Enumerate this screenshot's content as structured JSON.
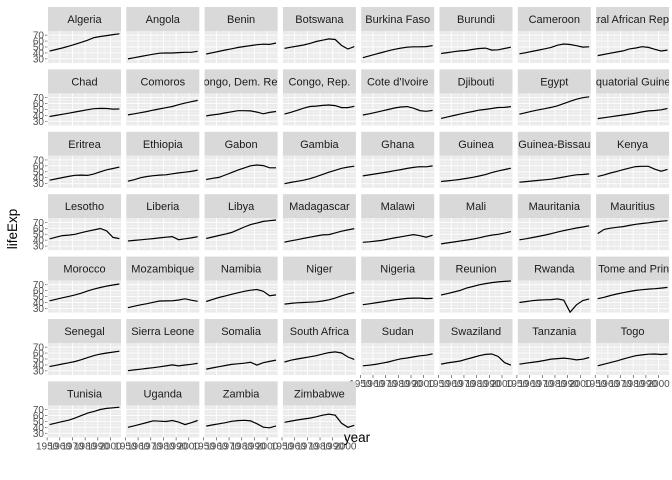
{
  "chart_data": {
    "type": "line",
    "facet": "country",
    "xlabel": "year",
    "ylabel": "lifeExp",
    "xlim": [
      1952,
      2007
    ],
    "ylim": [
      23,
      77
    ],
    "x": [
      1952,
      1957,
      1962,
      1967,
      1972,
      1977,
      1982,
      1987,
      1992,
      1997,
      2002,
      2007
    ],
    "x_ticks": [
      1950,
      1960,
      1970,
      1980,
      1990,
      2000
    ],
    "x_tick_labels": [
      "1950",
      "1960",
      "1970",
      "1980",
      "1990",
      "2000"
    ],
    "y_ticks": [
      30,
      40,
      50,
      60,
      70
    ],
    "y_tick_labels": [
      "30",
      "40",
      "50",
      "60",
      "70"
    ],
    "grid": true,
    "panel_background": "#ebebeb",
    "strip_background": "#d9d9d9",
    "line_color": "#000000",
    "series": [
      {
        "name": "Algeria",
        "values": [
          43.1,
          45.7,
          48.3,
          51.4,
          54.5,
          58.0,
          61.4,
          65.8,
          67.7,
          69.2,
          71.0,
          72.3
        ]
      },
      {
        "name": "Angola",
        "values": [
          30.0,
          32.0,
          34.0,
          36.0,
          37.9,
          39.5,
          39.9,
          39.9,
          40.6,
          41.0,
          41.0,
          42.7
        ]
      },
      {
        "name": "Benin",
        "values": [
          38.2,
          40.4,
          42.6,
          44.9,
          47.0,
          49.2,
          50.9,
          52.3,
          53.9,
          54.8,
          54.4,
          56.7
        ]
      },
      {
        "name": "Botswana",
        "values": [
          47.6,
          49.6,
          51.5,
          53.3,
          56.0,
          59.3,
          61.5,
          63.6,
          62.7,
          52.6,
          46.6,
          50.7
        ]
      },
      {
        "name": "Burkina Faso",
        "values": [
          32.0,
          34.9,
          37.8,
          40.7,
          43.6,
          46.1,
          48.1,
          49.6,
          50.3,
          50.3,
          50.7,
          52.3
        ]
      },
      {
        "name": "Burundi",
        "values": [
          39.0,
          40.5,
          42.0,
          43.5,
          44.1,
          45.9,
          47.5,
          48.2,
          44.7,
          45.3,
          47.4,
          49.6
        ]
      },
      {
        "name": "Cameroon",
        "values": [
          38.5,
          40.4,
          42.6,
          44.8,
          47.0,
          49.4,
          53.0,
          55.0,
          54.3,
          52.2,
          49.9,
          50.4
        ]
      },
      {
        "name": "Central African Republic",
        "values": [
          35.5,
          37.5,
          39.5,
          41.5,
          43.5,
          46.8,
          48.3,
          50.5,
          49.4,
          46.1,
          43.3,
          44.7
        ]
      },
      {
        "name": "Chad",
        "values": [
          38.1,
          39.9,
          41.7,
          43.6,
          45.6,
          47.4,
          49.5,
          51.1,
          51.7,
          51.6,
          50.5,
          50.7
        ]
      },
      {
        "name": "Comoros",
        "values": [
          40.7,
          42.5,
          44.5,
          46.5,
          48.9,
          50.9,
          52.9,
          54.9,
          57.9,
          60.7,
          62.97,
          65.2
        ]
      },
      {
        "name": "Congo, Dem. Rep.",
        "values": [
          39.1,
          40.7,
          42.1,
          44.1,
          45.9,
          47.8,
          47.8,
          47.4,
          45.5,
          42.6,
          45.0,
          46.5
        ]
      },
      {
        "name": "Congo, Rep.",
        "values": [
          42.1,
          45.1,
          48.4,
          52.0,
          54.9,
          55.6,
          56.7,
          57.5,
          56.4,
          52.96,
          52.97,
          55.3
        ]
      },
      {
        "name": "Cote d'Ivoire",
        "values": [
          40.5,
          42.5,
          44.9,
          47.4,
          49.8,
          52.4,
          53.98,
          54.7,
          52.0,
          47.99,
          46.8,
          48.3
        ]
      },
      {
        "name": "Djibouti",
        "values": [
          34.8,
          37.3,
          39.7,
          42.1,
          44.4,
          46.5,
          48.8,
          50.0,
          51.6,
          53.2,
          53.4,
          54.8
        ]
      },
      {
        "name": "Egypt",
        "values": [
          41.9,
          44.4,
          46.99,
          49.3,
          51.1,
          53.3,
          56.0,
          59.8,
          63.7,
          67.2,
          69.8,
          71.3
        ]
      },
      {
        "name": "Equatorial Guinea",
        "values": [
          34.5,
          35.98,
          37.5,
          38.99,
          40.5,
          42.0,
          43.7,
          45.7,
          47.5,
          48.2,
          49.3,
          51.6
        ]
      },
      {
        "name": "Eritrea",
        "values": [
          35.9,
          38.0,
          40.2,
          42.2,
          44.1,
          44.5,
          43.9,
          46.5,
          49.99,
          53.4,
          55.6,
          58.0
        ]
      },
      {
        "name": "Ethiopia",
        "values": [
          34.1,
          36.7,
          40.1,
          42.1,
          43.5,
          44.5,
          44.9,
          46.7,
          48.1,
          49.4,
          50.7,
          52.9
        ]
      },
      {
        "name": "Gabon",
        "values": [
          37.0,
          38.99,
          40.5,
          44.6,
          48.7,
          52.8,
          56.6,
          60.2,
          61.4,
          60.5,
          56.8,
          56.7
        ]
      },
      {
        "name": "Gambia",
        "values": [
          30.0,
          32.1,
          33.9,
          35.9,
          38.3,
          41.8,
          45.6,
          49.3,
          52.6,
          55.9,
          58.0,
          59.4
        ]
      },
      {
        "name": "Ghana",
        "values": [
          43.1,
          44.8,
          46.5,
          48.1,
          49.9,
          51.8,
          53.7,
          55.7,
          57.5,
          58.6,
          58.5,
          60.0
        ]
      },
      {
        "name": "Guinea",
        "values": [
          33.6,
          34.6,
          35.8,
          37.2,
          38.8,
          40.8,
          42.9,
          45.2,
          48.6,
          51.5,
          53.7,
          56.0
        ]
      },
      {
        "name": "Guinea-Bissau",
        "values": [
          32.5,
          33.5,
          34.5,
          35.5,
          36.5,
          37.5,
          39.3,
          41.2,
          43.3,
          44.9,
          45.5,
          46.4
        ]
      },
      {
        "name": "Kenya",
        "values": [
          42.3,
          44.7,
          47.9,
          50.7,
          53.6,
          56.2,
          58.8,
          59.3,
          59.3,
          54.4,
          50.99,
          54.1
        ]
      },
      {
        "name": "Lesotho",
        "values": [
          42.1,
          45.0,
          47.7,
          48.5,
          49.8,
          52.5,
          55.1,
          57.2,
          59.7,
          55.6,
          44.6,
          42.6
        ]
      },
      {
        "name": "Liberia",
        "values": [
          38.5,
          39.5,
          40.5,
          41.5,
          42.6,
          43.8,
          44.9,
          46.0,
          40.8,
          42.2,
          43.8,
          45.7
        ]
      },
      {
        "name": "Libya",
        "values": [
          42.7,
          45.3,
          47.8,
          50.2,
          52.8,
          57.4,
          62.2,
          66.2,
          68.8,
          71.6,
          72.7,
          73.95
        ]
      },
      {
        "name": "Madagascar",
        "values": [
          36.7,
          38.9,
          40.8,
          42.9,
          44.9,
          46.9,
          48.9,
          49.4,
          52.2,
          54.98,
          57.3,
          59.4
        ]
      },
      {
        "name": "Malawi",
        "values": [
          36.3,
          37.2,
          38.4,
          39.5,
          41.8,
          43.8,
          45.6,
          47.5,
          49.4,
          47.5,
          45.0,
          48.3
        ]
      },
      {
        "name": "Mali",
        "values": [
          33.7,
          35.3,
          36.9,
          38.5,
          40.0,
          41.7,
          43.9,
          46.4,
          48.4,
          49.9,
          51.8,
          54.5
        ]
      },
      {
        "name": "Mauritania",
        "values": [
          40.5,
          42.3,
          44.2,
          46.3,
          48.4,
          50.9,
          53.6,
          56.1,
          58.3,
          60.4,
          62.2,
          64.2
        ]
      },
      {
        "name": "Mauritius",
        "values": [
          50.99,
          58.1,
          60.2,
          61.6,
          62.9,
          64.9,
          66.7,
          68.0,
          69.2,
          70.7,
          71.95,
          72.8
        ]
      },
      {
        "name": "Morocco",
        "values": [
          42.9,
          45.4,
          47.9,
          50.3,
          52.9,
          55.7,
          59.7,
          62.7,
          65.4,
          67.7,
          69.6,
          71.2
        ]
      },
      {
        "name": "Mozambique",
        "values": [
          31.3,
          33.8,
          36.2,
          38.1,
          40.3,
          42.5,
          42.8,
          42.9,
          44.3,
          46.3,
          44.0,
          42.1
        ]
      },
      {
        "name": "Namibia",
        "values": [
          41.7,
          45.2,
          48.4,
          51.2,
          53.9,
          56.4,
          58.97,
          60.8,
          61.99,
          58.9,
          51.5,
          52.9
        ]
      },
      {
        "name": "Niger",
        "values": [
          37.4,
          38.6,
          39.5,
          40.1,
          40.5,
          41.3,
          42.6,
          44.6,
          47.4,
          51.3,
          54.5,
          56.9
        ]
      },
      {
        "name": "Nigeria",
        "values": [
          36.3,
          37.8,
          39.4,
          41.0,
          42.8,
          44.5,
          45.8,
          46.9,
          47.5,
          47.5,
          46.6,
          46.9
        ]
      },
      {
        "name": "Reunion",
        "values": [
          52.7,
          55.1,
          57.7,
          60.5,
          64.3,
          67.1,
          69.9,
          71.9,
          73.6,
          74.8,
          75.7,
          76.4
        ]
      },
      {
        "name": "Rwanda",
        "values": [
          40.0,
          41.5,
          43.0,
          44.1,
          44.6,
          45.0,
          46.2,
          44.0,
          23.6,
          36.1,
          43.4,
          46.2
        ]
      },
      {
        "name": "Sao Tome and Principe",
        "values": [
          46.5,
          48.9,
          51.9,
          54.4,
          56.5,
          58.6,
          60.4,
          61.7,
          62.7,
          63.3,
          64.3,
          65.5
        ]
      },
      {
        "name": "Senegal",
        "values": [
          37.3,
          39.3,
          41.5,
          43.6,
          45.8,
          48.9,
          52.4,
          55.8,
          58.2,
          60.2,
          61.6,
          63.1
        ]
      },
      {
        "name": "Sierra Leone",
        "values": [
          30.3,
          31.6,
          32.8,
          34.1,
          35.4,
          36.8,
          38.4,
          40.0,
          38.3,
          39.9,
          41.0,
          42.6
        ]
      },
      {
        "name": "Somalia",
        "values": [
          32.98,
          34.98,
          36.98,
          38.98,
          40.97,
          41.97,
          42.96,
          44.5,
          39.7,
          43.8,
          45.9,
          48.2
        ]
      },
      {
        "name": "South Africa",
        "values": [
          45.0,
          47.99,
          49.95,
          51.9,
          53.7,
          55.5,
          58.2,
          60.8,
          61.9,
          60.2,
          53.4,
          49.3
        ]
      },
      {
        "name": "Sudan",
        "values": [
          38.6,
          39.6,
          40.9,
          42.9,
          44.99,
          47.8,
          50.3,
          51.7,
          53.6,
          55.4,
          56.4,
          58.6
        ]
      },
      {
        "name": "Swaziland",
        "values": [
          41.4,
          43.4,
          44.99,
          46.6,
          49.6,
          52.5,
          55.6,
          57.7,
          58.5,
          54.3,
          43.9,
          39.6
        ]
      },
      {
        "name": "Tanzania",
        "values": [
          41.2,
          42.97,
          44.2,
          45.8,
          47.6,
          49.9,
          50.6,
          51.5,
          50.4,
          48.5,
          49.7,
          52.5
        ]
      },
      {
        "name": "Togo",
        "values": [
          38.6,
          41.2,
          43.9,
          46.8,
          49.8,
          52.9,
          55.5,
          56.9,
          58.1,
          58.4,
          57.6,
          58.4
        ]
      },
      {
        "name": "Tunisia",
        "values": [
          44.6,
          47.1,
          49.6,
          52.1,
          55.6,
          59.8,
          64.0,
          66.9,
          70.0,
          71.97,
          73.0,
          73.9
        ]
      },
      {
        "name": "Uganda",
        "values": [
          39.98,
          42.6,
          45.3,
          48.1,
          51.0,
          50.4,
          49.8,
          51.5,
          48.8,
          44.6,
          47.8,
          51.5
        ]
      },
      {
        "name": "Zambia",
        "values": [
          42.0,
          44.1,
          46.0,
          47.8,
          50.1,
          51.4,
          51.8,
          50.8,
          46.1,
          40.2,
          39.2,
          42.4
        ]
      },
      {
        "name": "Zimbabwe",
        "values": [
          48.5,
          50.5,
          52.4,
          54.0,
          55.6,
          57.7,
          60.4,
          62.4,
          60.4,
          46.8,
          39.99,
          43.5
        ]
      }
    ]
  }
}
